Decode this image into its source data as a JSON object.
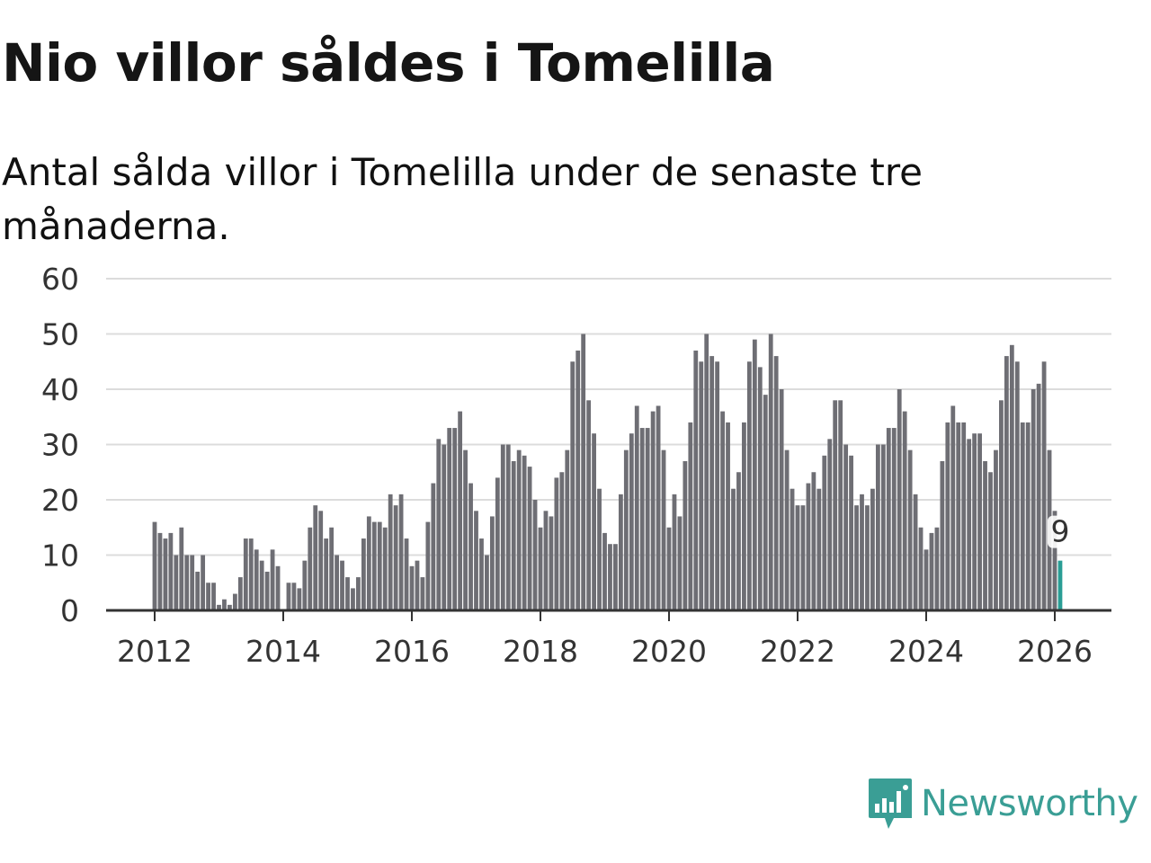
{
  "title": "Nio villor såldes i Tomelilla",
  "subtitle": "Antal sålda villor i Tomelilla under de senaste tre månaderna.",
  "brand": {
    "name": "Newsworthy",
    "color": "#3a9e95",
    "icon": "newsworthy-logo-icon"
  },
  "colors": {
    "bar": "#6e6e74",
    "highlight": "#2a9d95",
    "grid": "#dcdcdc",
    "axis": "#333333"
  },
  "chart_data": {
    "type": "bar",
    "x_start": "2012-01",
    "values": [
      16,
      14,
      13,
      14,
      10,
      15,
      10,
      10,
      7,
      10,
      5,
      5,
      1,
      2,
      1,
      3,
      6,
      13,
      13,
      11,
      9,
      7,
      11,
      8,
      0,
      5,
      5,
      4,
      9,
      15,
      19,
      18,
      13,
      15,
      10,
      9,
      6,
      4,
      6,
      13,
      17,
      16,
      16,
      15,
      21,
      19,
      21,
      13,
      8,
      9,
      6,
      16,
      23,
      31,
      30,
      33,
      33,
      36,
      29,
      23,
      18,
      13,
      10,
      17,
      24,
      30,
      30,
      27,
      29,
      28,
      26,
      20,
      15,
      18,
      17,
      24,
      25,
      29,
      45,
      47,
      50,
      38,
      32,
      22,
      14,
      12,
      12,
      21,
      29,
      32,
      37,
      33,
      33,
      36,
      37,
      29,
      15,
      21,
      17,
      27,
      34,
      47,
      45,
      50,
      46,
      45,
      36,
      34,
      22,
      25,
      34,
      45,
      49,
      44,
      39,
      50,
      46,
      40,
      29,
      22,
      19,
      19,
      23,
      25,
      22,
      28,
      31,
      38,
      38,
      30,
      28,
      19,
      21,
      19,
      22,
      30,
      30,
      33,
      33,
      40,
      36,
      29,
      21,
      15,
      11,
      14,
      15,
      27,
      34,
      37,
      34,
      34,
      31,
      32,
      32,
      27,
      25,
      29,
      38,
      46,
      48,
      45,
      34,
      34,
      40,
      41,
      45,
      29,
      18,
      9
    ],
    "highlight_index": 169,
    "highlight_label": "9",
    "y_ticks": [
      "0",
      "10",
      "20",
      "30",
      "40",
      "50",
      "60"
    ],
    "x_ticks": [
      "2012",
      "2014",
      "2016",
      "2018",
      "2020",
      "2022",
      "2024",
      "2026"
    ],
    "ylim": [
      0,
      60
    ],
    "xlabel": "",
    "ylabel": ""
  }
}
